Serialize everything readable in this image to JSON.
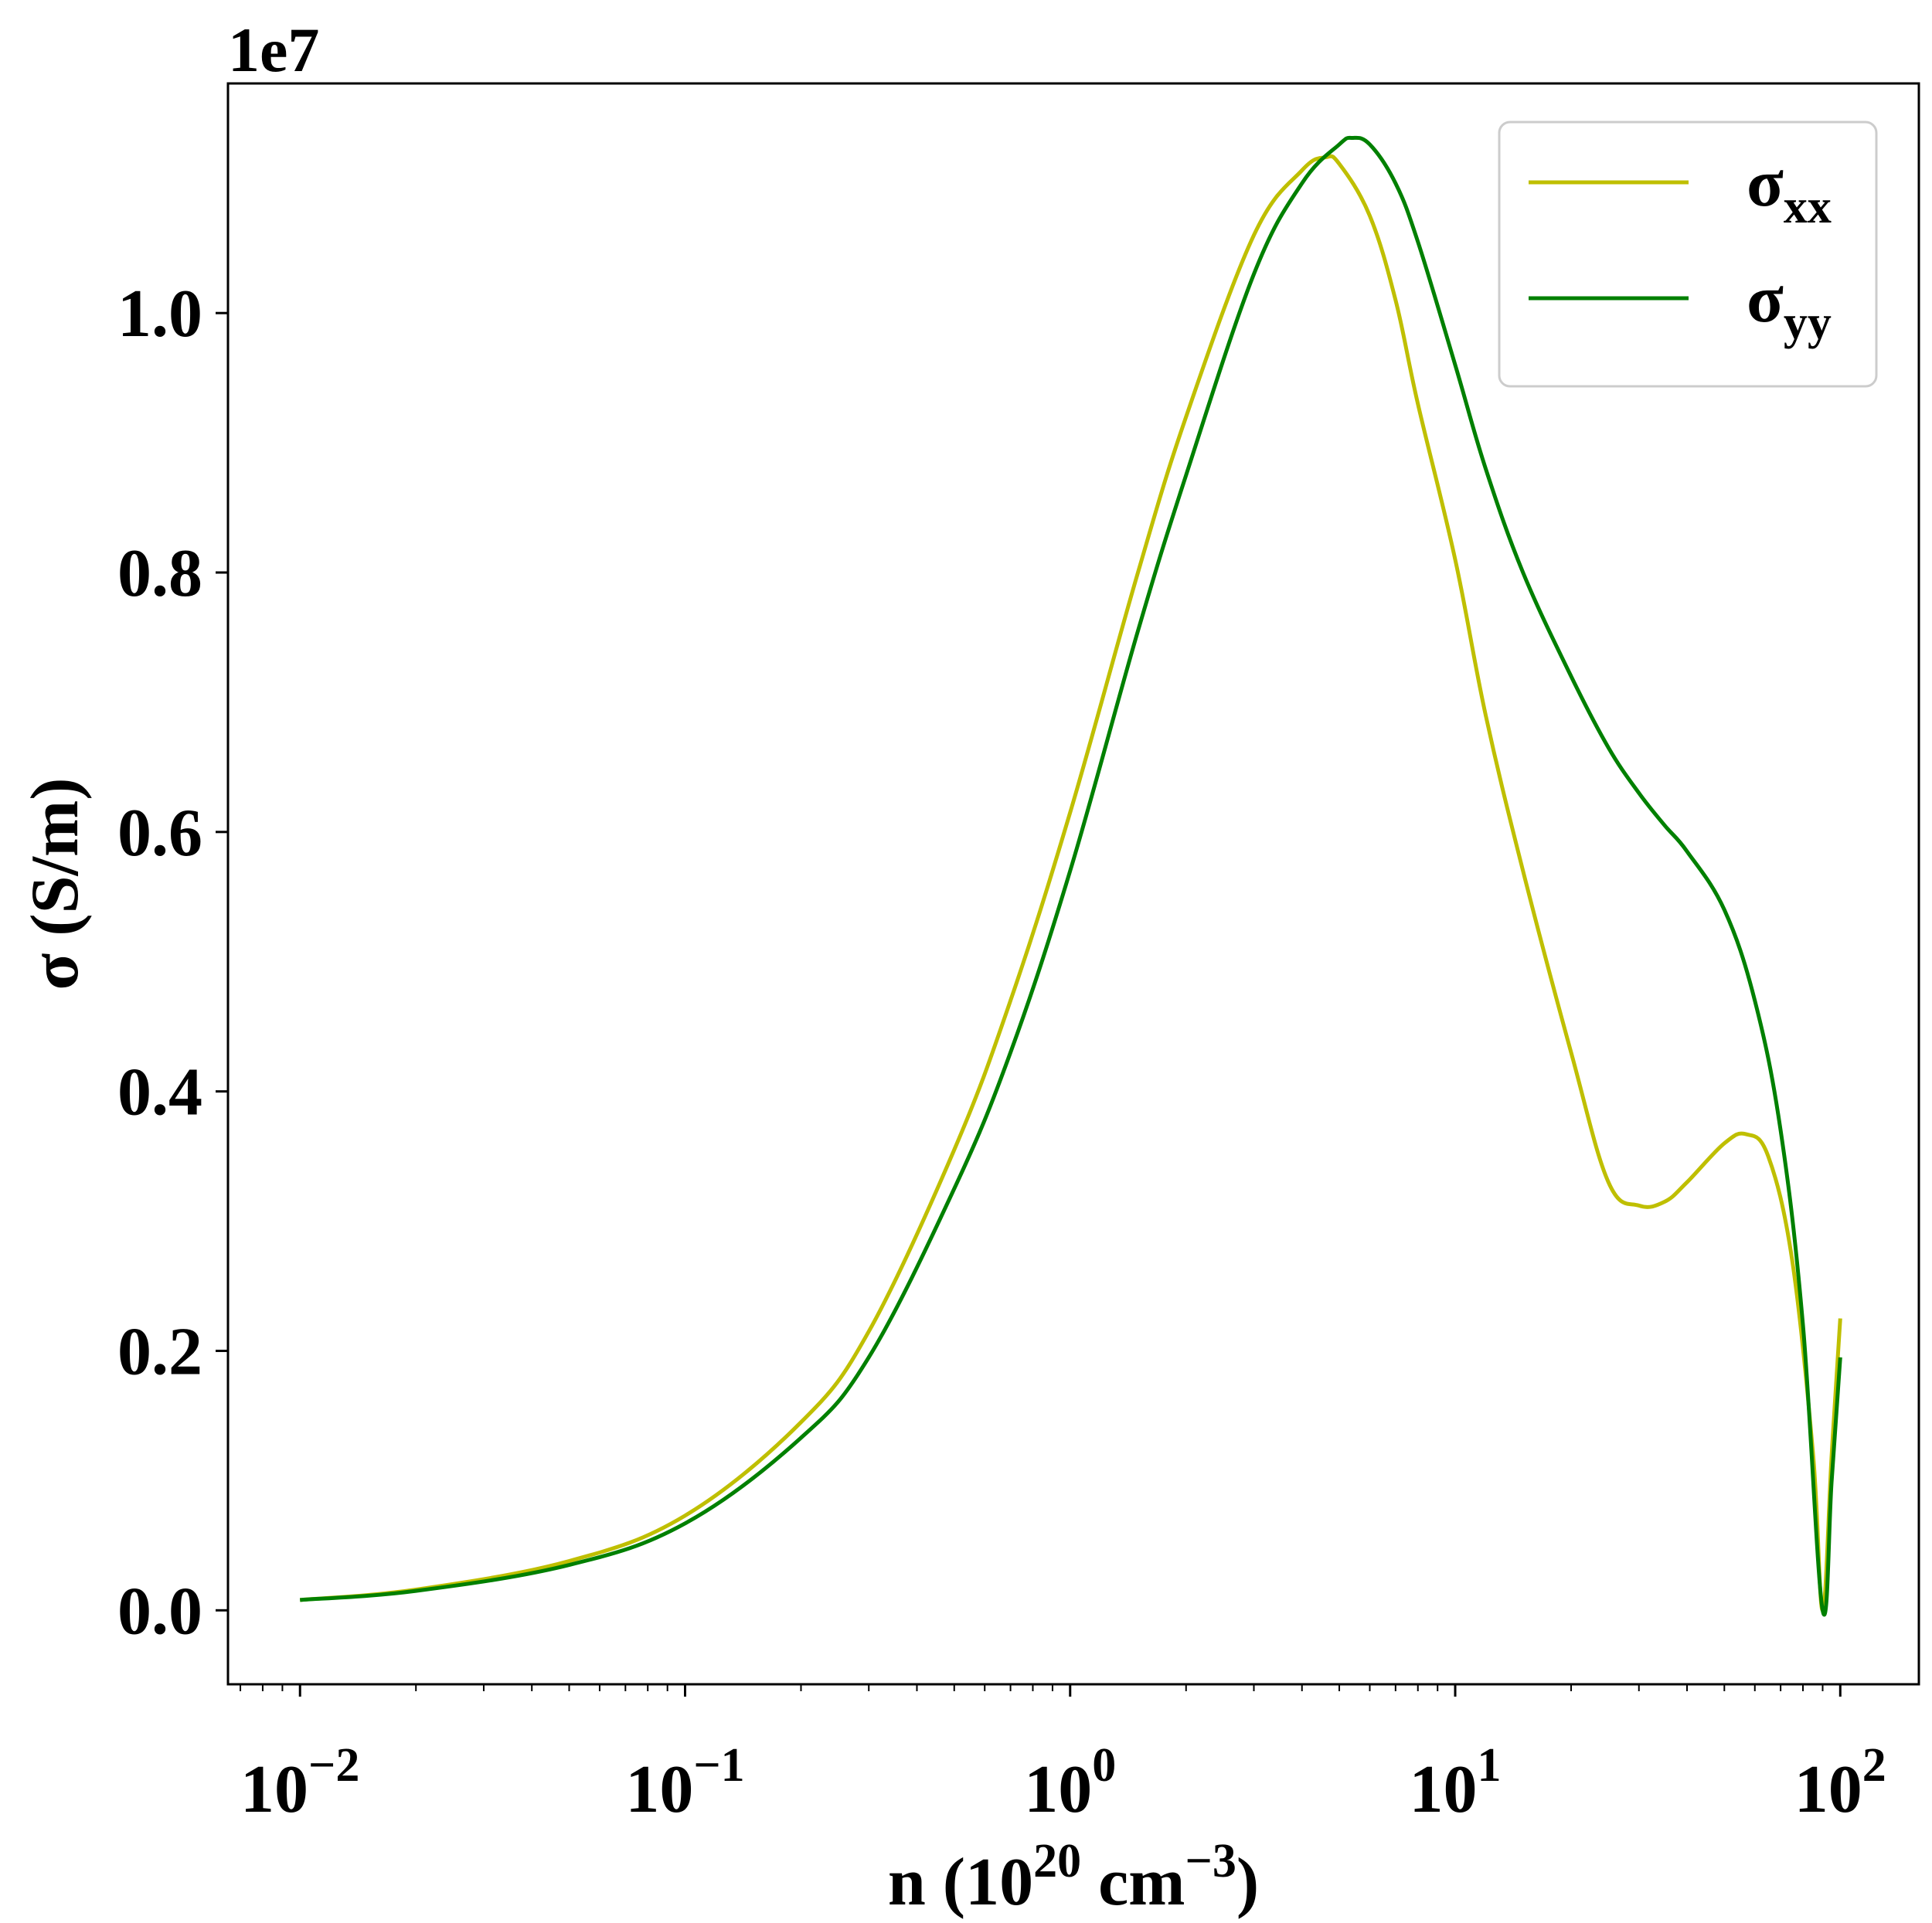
{
  "chart_data": {
    "type": "line",
    "xlabel": {
      "prefix": "n (10",
      "sup1": "20",
      "mid": " cm",
      "sup2": "−3",
      "suffix": ")"
    },
    "ylabel": "σ (S/m)",
    "offset_label": "1e7",
    "xscale": "log",
    "xlim": [
      0.0065,
      160
    ],
    "ylim": [
      -0.057,
      1.177
    ],
    "yscale_factor": 10000000,
    "x_ticks": [
      {
        "value": 0.01,
        "base": "10",
        "exp": "−2"
      },
      {
        "value": 0.1,
        "base": "10",
        "exp": "−1"
      },
      {
        "value": 1,
        "base": "10",
        "exp": "0"
      },
      {
        "value": 10,
        "base": "10",
        "exp": "1"
      },
      {
        "value": 100,
        "base": "10",
        "exp": "2"
      }
    ],
    "y_ticks": [
      {
        "value": 0.0,
        "label": "0.0"
      },
      {
        "value": 0.2,
        "label": "0.2"
      },
      {
        "value": 0.4,
        "label": "0.4"
      },
      {
        "value": 0.6,
        "label": "0.6"
      },
      {
        "value": 0.8,
        "label": "0.8"
      },
      {
        "value": 1.0,
        "label": "1.0"
      }
    ],
    "grid": false,
    "legend": {
      "placement": "top-right",
      "entries": [
        {
          "base": "σ",
          "sub": "xx",
          "color": "#bfbf00"
        },
        {
          "base": "σ",
          "sub": "yy",
          "color": "#008000"
        }
      ]
    },
    "series": [
      {
        "name": "σxx",
        "color": "#bfbf00",
        "points": [
          [
            0.01,
            0.008
          ],
          [
            0.02,
            0.016
          ],
          [
            0.05,
            0.038
          ],
          [
            0.1,
            0.073
          ],
          [
            0.2,
            0.145
          ],
          [
            0.3,
            0.215
          ],
          [
            0.5,
            0.355
          ],
          [
            0.7,
            0.47
          ],
          [
            1.0,
            0.615
          ],
          [
            1.5,
            0.8
          ],
          [
            2.0,
            0.92
          ],
          [
            3.0,
            1.06
          ],
          [
            4.0,
            1.11
          ],
          [
            4.6,
            1.12
          ],
          [
            5.0,
            1.115
          ],
          [
            6.0,
            1.075
          ],
          [
            7.0,
            1.01
          ],
          [
            8.0,
            0.93
          ],
          [
            10.0,
            0.81
          ],
          [
            12.0,
            0.69
          ],
          [
            15.0,
            0.57
          ],
          [
            20.0,
            0.43
          ],
          [
            25.0,
            0.33
          ],
          [
            30.0,
            0.312
          ],
          [
            35.0,
            0.315
          ],
          [
            40.0,
            0.33
          ],
          [
            50.0,
            0.36
          ],
          [
            57.0,
            0.367
          ],
          [
            65.0,
            0.35
          ],
          [
            75.0,
            0.27
          ],
          [
            85.0,
            0.12
          ],
          [
            90.0,
            0.0
          ],
          [
            95.0,
            0.12
          ],
          [
            100.0,
            0.225
          ]
        ]
      },
      {
        "name": "σyy",
        "color": "#008000",
        "points": [
          [
            0.01,
            0.008
          ],
          [
            0.02,
            0.015
          ],
          [
            0.05,
            0.035
          ],
          [
            0.1,
            0.067
          ],
          [
            0.2,
            0.133
          ],
          [
            0.3,
            0.195
          ],
          [
            0.5,
            0.325
          ],
          [
            0.7,
            0.43
          ],
          [
            1.0,
            0.57
          ],
          [
            1.5,
            0.755
          ],
          [
            2.0,
            0.875
          ],
          [
            3.0,
            1.03
          ],
          [
            4.0,
            1.1
          ],
          [
            5.0,
            1.13
          ],
          [
            5.4,
            1.135
          ],
          [
            6.0,
            1.13
          ],
          [
            7.0,
            1.1
          ],
          [
            8.0,
            1.055
          ],
          [
            10.0,
            0.96
          ],
          [
            12.0,
            0.88
          ],
          [
            15.0,
            0.8
          ],
          [
            20.0,
            0.72
          ],
          [
            25.0,
            0.665
          ],
          [
            30.0,
            0.63
          ],
          [
            35.0,
            0.605
          ],
          [
            40.0,
            0.585
          ],
          [
            50.0,
            0.54
          ],
          [
            60.0,
            0.47
          ],
          [
            70.0,
            0.37
          ],
          [
            80.0,
            0.22
          ],
          [
            90.0,
            0.0
          ],
          [
            95.0,
            0.1
          ],
          [
            100.0,
            0.195
          ]
        ]
      }
    ]
  }
}
